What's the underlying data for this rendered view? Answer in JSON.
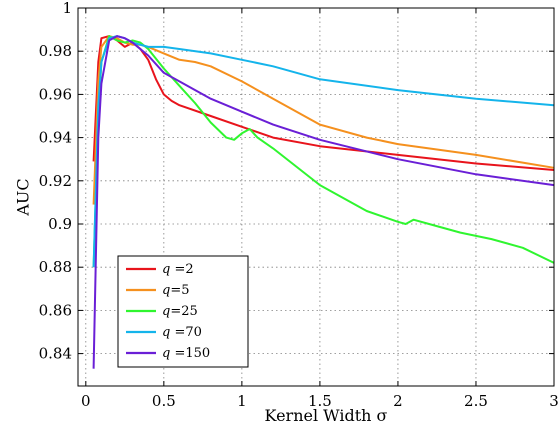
{
  "chart_data": {
    "type": "line",
    "title": "",
    "xlabel": "Kernel Width σ",
    "ylabel": "AUC",
    "xlim": [
      -0.05,
      3
    ],
    "ylim": [
      0.825,
      1.0
    ],
    "xticks": [
      0,
      0.5,
      1,
      1.5,
      2,
      2.5,
      3
    ],
    "xtick_labels": [
      "0",
      "0.5",
      "1",
      "1.5",
      "2",
      "2.5",
      "3"
    ],
    "yticks": [
      0.84,
      0.86,
      0.88,
      0.9,
      0.92,
      0.94,
      0.96,
      0.98,
      1.0
    ],
    "ytick_labels": [
      "0.84",
      "0.86",
      "0.88",
      "0.9",
      "0.92",
      "0.94",
      "0.96",
      "0.98",
      "1"
    ],
    "grid": true,
    "legend_position": "bottom-left",
    "series": [
      {
        "name": "q =2",
        "symbol": "q",
        "suffix": " =2",
        "color": "#e8141c",
        "x": [
          0.05,
          0.08,
          0.1,
          0.15,
          0.2,
          0.25,
          0.3,
          0.35,
          0.4,
          0.45,
          0.5,
          0.55,
          0.6,
          0.8,
          1.0,
          1.2,
          1.5,
          2.0,
          2.5,
          3.0
        ],
        "y": [
          0.929,
          0.975,
          0.986,
          0.987,
          0.985,
          0.982,
          0.984,
          0.981,
          0.976,
          0.967,
          0.96,
          0.957,
          0.955,
          0.95,
          0.945,
          0.94,
          0.936,
          0.932,
          0.928,
          0.925
        ]
      },
      {
        "name": "q=5",
        "symbol": "q",
        "suffix": "=5",
        "color": "#f5901e",
        "x": [
          0.05,
          0.08,
          0.1,
          0.15,
          0.2,
          0.25,
          0.3,
          0.35,
          0.4,
          0.5,
          0.6,
          0.7,
          0.8,
          1.0,
          1.2,
          1.5,
          1.8,
          2.0,
          2.5,
          3.0
        ],
        "y": [
          0.909,
          0.966,
          0.982,
          0.987,
          0.986,
          0.984,
          0.983,
          0.983,
          0.982,
          0.979,
          0.976,
          0.975,
          0.973,
          0.966,
          0.958,
          0.946,
          0.94,
          0.937,
          0.932,
          0.926
        ]
      },
      {
        "name": "q=25",
        "symbol": "q",
        "suffix": "=25",
        "color": "#2ff52f",
        "x": [
          0.05,
          0.08,
          0.1,
          0.15,
          0.2,
          0.25,
          0.3,
          0.35,
          0.4,
          0.5,
          0.6,
          0.7,
          0.8,
          0.9,
          0.95,
          1.0,
          1.05,
          1.1,
          1.2,
          1.5,
          1.8,
          2.0,
          2.05,
          2.1,
          2.2,
          2.4,
          2.6,
          2.8,
          3.0
        ],
        "y": [
          0.88,
          0.95,
          0.975,
          0.987,
          0.985,
          0.984,
          0.985,
          0.984,
          0.981,
          0.972,
          0.964,
          0.956,
          0.947,
          0.94,
          0.939,
          0.942,
          0.944,
          0.94,
          0.935,
          0.918,
          0.906,
          0.901,
          0.9,
          0.902,
          0.9,
          0.896,
          0.893,
          0.889,
          0.882
        ]
      },
      {
        "name": "q =70",
        "symbol": "q",
        "suffix": " =70",
        "color": "#14b4eb",
        "x": [
          0.05,
          0.08,
          0.1,
          0.15,
          0.2,
          0.25,
          0.3,
          0.4,
          0.5,
          0.6,
          0.8,
          1.0,
          1.2,
          1.5,
          2.0,
          2.5,
          3.0
        ],
        "y": [
          0.88,
          0.955,
          0.975,
          0.986,
          0.987,
          0.986,
          0.984,
          0.982,
          0.982,
          0.981,
          0.979,
          0.976,
          0.973,
          0.967,
          0.962,
          0.958,
          0.955
        ]
      },
      {
        "name": "q =150",
        "symbol": "q",
        "suffix": " =150",
        "color": "#6a1fd6",
        "x": [
          0.05,
          0.08,
          0.1,
          0.15,
          0.2,
          0.25,
          0.3,
          0.4,
          0.5,
          0.6,
          0.8,
          1.0,
          1.2,
          1.5,
          2.0,
          2.5,
          3.0
        ],
        "y": [
          0.833,
          0.94,
          0.965,
          0.985,
          0.987,
          0.986,
          0.984,
          0.978,
          0.97,
          0.966,
          0.958,
          0.952,
          0.946,
          0.939,
          0.93,
          0.923,
          0.918
        ]
      }
    ]
  }
}
